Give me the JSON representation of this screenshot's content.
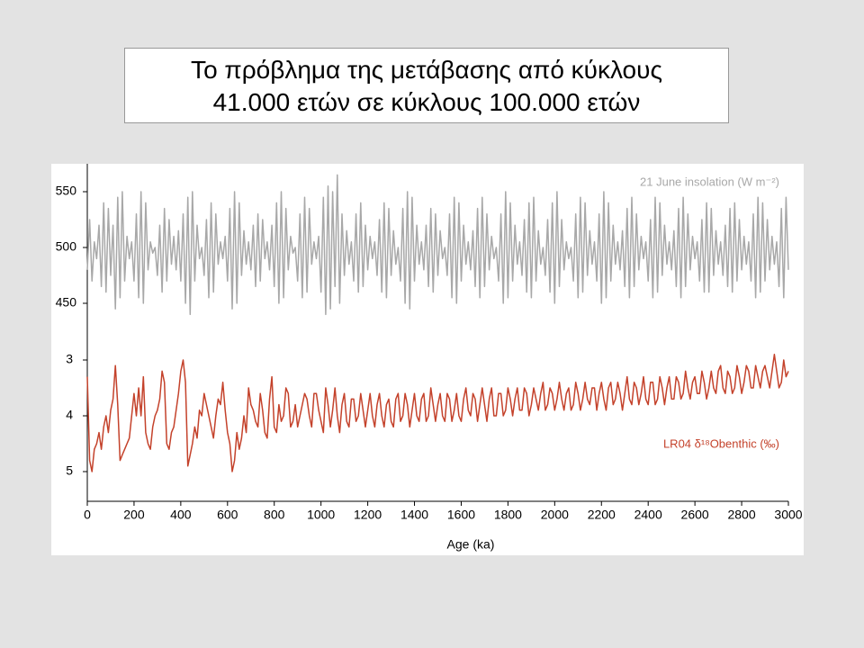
{
  "title": [
    "Το πρόβλημα της μετάβασης από κύκλους",
    "41.000 ετών σε κύκλους 100.000 ετών"
  ],
  "chart_data": {
    "type": "line",
    "xlabel": "Age (ka)",
    "xlim": [
      0,
      3000
    ],
    "xticks": [
      0,
      200,
      400,
      600,
      800,
      1000,
      1200,
      1400,
      1600,
      1800,
      2000,
      2200,
      2400,
      2600,
      2800,
      3000
    ],
    "ylim": [
      430,
      570
    ],
    "yticks": [
      450,
      500,
      550
    ],
    "y2lim": [
      2.7,
      5.5
    ],
    "y2ticks": [
      3,
      4,
      5
    ],
    "y2_inverted": true,
    "grid": false,
    "x": [
      0,
      10,
      20,
      30,
      40,
      50,
      60,
      70,
      80,
      90,
      100,
      110,
      120,
      130,
      140,
      150,
      160,
      170,
      180,
      190,
      200,
      210,
      220,
      230,
      240,
      250,
      260,
      270,
      280,
      290,
      300,
      310,
      320,
      330,
      340,
      350,
      360,
      370,
      380,
      390,
      400,
      410,
      420,
      430,
      440,
      450,
      460,
      470,
      480,
      490,
      500,
      510,
      520,
      530,
      540,
      550,
      560,
      570,
      580,
      590,
      600,
      610,
      620,
      630,
      640,
      650,
      660,
      670,
      680,
      690,
      700,
      710,
      720,
      730,
      740,
      750,
      760,
      770,
      780,
      790,
      800,
      810,
      820,
      830,
      840,
      850,
      860,
      870,
      880,
      890,
      900,
      910,
      920,
      930,
      940,
      950,
      960,
      970,
      980,
      990,
      1000,
      1010,
      1020,
      1030,
      1040,
      1050,
      1060,
      1070,
      1080,
      1090,
      1100,
      1110,
      1120,
      1130,
      1140,
      1150,
      1160,
      1170,
      1180,
      1190,
      1200,
      1210,
      1220,
      1230,
      1240,
      1250,
      1260,
      1270,
      1280,
      1290,
      1300,
      1310,
      1320,
      1330,
      1340,
      1350,
      1360,
      1370,
      1380,
      1390,
      1400,
      1410,
      1420,
      1430,
      1440,
      1450,
      1460,
      1470,
      1480,
      1490,
      1500,
      1510,
      1520,
      1530,
      1540,
      1550,
      1560,
      1570,
      1580,
      1590,
      1600,
      1610,
      1620,
      1630,
      1640,
      1650,
      1660,
      1670,
      1680,
      1690,
      1700,
      1710,
      1720,
      1730,
      1740,
      1750,
      1760,
      1770,
      1780,
      1790,
      1800,
      1810,
      1820,
      1830,
      1840,
      1850,
      1860,
      1870,
      1880,
      1890,
      1900,
      1910,
      1920,
      1930,
      1940,
      1950,
      1960,
      1970,
      1980,
      1990,
      2000,
      2010,
      2020,
      2030,
      2040,
      2050,
      2060,
      2070,
      2080,
      2090,
      2100,
      2110,
      2120,
      2130,
      2140,
      2150,
      2160,
      2170,
      2180,
      2190,
      2200,
      2210,
      2220,
      2230,
      2240,
      2250,
      2260,
      2270,
      2280,
      2290,
      2300,
      2310,
      2320,
      2330,
      2340,
      2350,
      2360,
      2370,
      2380,
      2390,
      2400,
      2410,
      2420,
      2430,
      2440,
      2450,
      2460,
      2470,
      2480,
      2490,
      2500,
      2510,
      2520,
      2530,
      2540,
      2550,
      2560,
      2570,
      2580,
      2590,
      2600,
      2610,
      2620,
      2630,
      2640,
      2650,
      2660,
      2670,
      2680,
      2690,
      2700,
      2710,
      2720,
      2730,
      2740,
      2750,
      2760,
      2770,
      2780,
      2790,
      2800,
      2810,
      2820,
      2830,
      2840,
      2850,
      2860,
      2870,
      2880,
      2890,
      2900,
      2910,
      2920,
      2930,
      2940,
      2950,
      2960,
      2970,
      2980,
      2990,
      3000
    ],
    "series": [
      {
        "name": "21 June insolation (W m⁻²)",
        "color": "#a8a8a8",
        "axis": "y",
        "values": [
          480,
          525,
          470,
          505,
          490,
          520,
          465,
          540,
          460,
          535,
          475,
          520,
          445,
          545,
          455,
          550,
          470,
          510,
          490,
          505,
          470,
          530,
          455,
          550,
          450,
          540,
          480,
          505,
          495,
          500,
          475,
          520,
          460,
          535,
          470,
          525,
          485,
          510,
          480,
          515,
          470,
          530,
          450,
          545,
          440,
          550,
          470,
          520,
          490,
          500,
          475,
          525,
          455,
          540,
          460,
          530,
          485,
          505,
          490,
          510,
          470,
          535,
          445,
          550,
          450,
          540,
          475,
          515,
          485,
          505,
          480,
          520,
          465,
          530,
          470,
          525,
          490,
          505,
          480,
          520,
          465,
          540,
          450,
          550,
          455,
          535,
          480,
          510,
          495,
          500,
          470,
          530,
          455,
          545,
          460,
          535,
          485,
          505,
          490,
          510,
          460,
          545,
          440,
          555,
          445,
          550,
          465,
          565,
          450,
          530,
          475,
          515,
          485,
          505,
          470,
          530,
          460,
          540,
          465,
          520,
          480,
          510,
          490,
          505,
          475,
          525,
          460,
          540,
          455,
          535,
          475,
          515,
          485,
          500,
          470,
          535,
          450,
          550,
          445,
          545,
          470,
          520,
          485,
          505,
          480,
          520,
          465,
          535,
          460,
          530,
          475,
          515,
          490,
          500,
          475,
          530,
          455,
          545,
          450,
          540,
          470,
          520,
          485,
          505,
          480,
          515,
          465,
          535,
          455,
          545,
          465,
          530,
          480,
          510,
          490,
          500,
          470,
          530,
          450,
          550,
          455,
          540,
          470,
          520,
          485,
          505,
          475,
          525,
          460,
          540,
          455,
          545,
          470,
          515,
          485,
          500,
          475,
          525,
          460,
          540,
          450,
          550,
          465,
          525,
          480,
          505,
          490,
          500,
          470,
          530,
          455,
          545,
          460,
          540,
          475,
          515,
          485,
          505,
          470,
          530,
          450,
          550,
          455,
          540,
          470,
          520,
          485,
          505,
          480,
          515,
          465,
          535,
          455,
          545,
          465,
          530,
          480,
          510,
          490,
          505,
          470,
          525,
          455,
          545,
          460,
          540,
          475,
          520,
          485,
          505,
          480,
          515,
          465,
          535,
          455,
          545,
          465,
          530,
          480,
          510,
          490,
          505,
          470,
          525,
          460,
          540,
          460,
          535,
          475,
          515,
          485,
          505,
          475,
          520,
          465,
          535,
          460,
          540,
          470,
          525,
          480,
          510,
          485,
          505,
          470,
          530,
          455,
          545,
          460,
          540,
          470,
          525,
          480,
          510,
          485,
          505,
          465,
          535,
          455,
          545,
          480
        ]
      },
      {
        "name": "LR04 δ¹⁸Obenthic (‰)",
        "color": "#c4422b",
        "axis": "y2",
        "values": [
          3.3,
          4.8,
          5.0,
          4.6,
          4.5,
          4.3,
          4.6,
          4.2,
          4.0,
          4.3,
          3.9,
          3.7,
          3.1,
          3.8,
          4.8,
          4.7,
          4.6,
          4.5,
          4.4,
          4.0,
          3.6,
          4.0,
          3.5,
          4.0,
          3.3,
          4.3,
          4.5,
          4.6,
          4.2,
          4.0,
          3.9,
          3.7,
          3.2,
          3.4,
          4.5,
          4.6,
          4.3,
          4.2,
          3.9,
          3.6,
          3.2,
          3.0,
          3.4,
          4.9,
          4.7,
          4.5,
          4.2,
          4.4,
          3.9,
          4.0,
          3.6,
          3.8,
          4.0,
          4.2,
          4.4,
          4.0,
          3.7,
          3.8,
          3.4,
          3.9,
          4.3,
          4.5,
          5.0,
          4.8,
          4.3,
          4.6,
          4.4,
          4.0,
          4.3,
          3.5,
          3.8,
          3.9,
          4.1,
          4.2,
          3.6,
          3.9,
          4.3,
          4.4,
          3.7,
          3.3,
          4.2,
          4.3,
          3.8,
          4.1,
          4.0,
          3.5,
          3.6,
          4.2,
          4.1,
          3.8,
          4.2,
          4.0,
          3.8,
          3.6,
          3.7,
          4.0,
          4.2,
          3.6,
          3.6,
          3.9,
          4.1,
          4.3,
          3.5,
          3.8,
          4.2,
          3.9,
          3.5,
          4.0,
          4.3,
          3.8,
          3.6,
          4.1,
          4.2,
          3.7,
          3.7,
          4.1,
          4.0,
          3.6,
          3.9,
          4.2,
          3.9,
          3.6,
          4.0,
          4.2,
          3.8,
          3.6,
          4.0,
          4.2,
          3.8,
          3.7,
          4.1,
          4.2,
          3.7,
          3.6,
          4.1,
          4.0,
          3.6,
          3.8,
          4.2,
          3.9,
          3.6,
          4.0,
          4.1,
          3.7,
          3.6,
          4.1,
          4.0,
          3.5,
          3.8,
          4.1,
          3.8,
          3.6,
          4.0,
          4.1,
          3.6,
          3.7,
          4.1,
          3.9,
          3.6,
          4.0,
          4.1,
          3.7,
          3.5,
          3.9,
          4.0,
          3.6,
          3.7,
          4.1,
          3.8,
          3.5,
          3.8,
          4.1,
          3.7,
          3.5,
          4.0,
          4.0,
          3.6,
          3.6,
          4.0,
          3.9,
          3.5,
          3.7,
          4.0,
          3.7,
          3.5,
          3.9,
          3.9,
          3.5,
          3.6,
          4.0,
          3.8,
          3.5,
          3.7,
          3.9,
          3.6,
          3.4,
          3.9,
          3.8,
          3.5,
          3.6,
          3.9,
          3.7,
          3.4,
          3.7,
          3.9,
          3.6,
          3.5,
          3.9,
          3.8,
          3.4,
          3.6,
          3.9,
          3.7,
          3.4,
          3.7,
          3.8,
          3.5,
          3.5,
          3.9,
          3.6,
          3.4,
          3.7,
          3.9,
          3.5,
          3.4,
          3.8,
          3.7,
          3.4,
          3.6,
          3.9,
          3.6,
          3.3,
          3.7,
          3.8,
          3.4,
          3.5,
          3.8,
          3.6,
          3.3,
          3.7,
          3.8,
          3.4,
          3.4,
          3.8,
          3.7,
          3.3,
          3.5,
          3.8,
          3.5,
          3.3,
          3.7,
          3.7,
          3.3,
          3.4,
          3.7,
          3.6,
          3.2,
          3.5,
          3.7,
          3.4,
          3.3,
          3.6,
          3.6,
          3.2,
          3.4,
          3.7,
          3.5,
          3.2,
          3.5,
          3.6,
          3.2,
          3.1,
          3.5,
          3.6,
          3.2,
          3.3,
          3.6,
          3.5,
          3.1,
          3.3,
          3.6,
          3.4,
          3.1,
          3.2,
          3.5,
          3.5,
          3.1,
          3.3,
          3.5,
          3.2,
          3.1,
          3.3,
          3.5,
          3.2,
          2.9,
          3.2,
          3.5,
          3.4,
          3.0,
          3.3,
          3.2
        ]
      }
    ]
  }
}
